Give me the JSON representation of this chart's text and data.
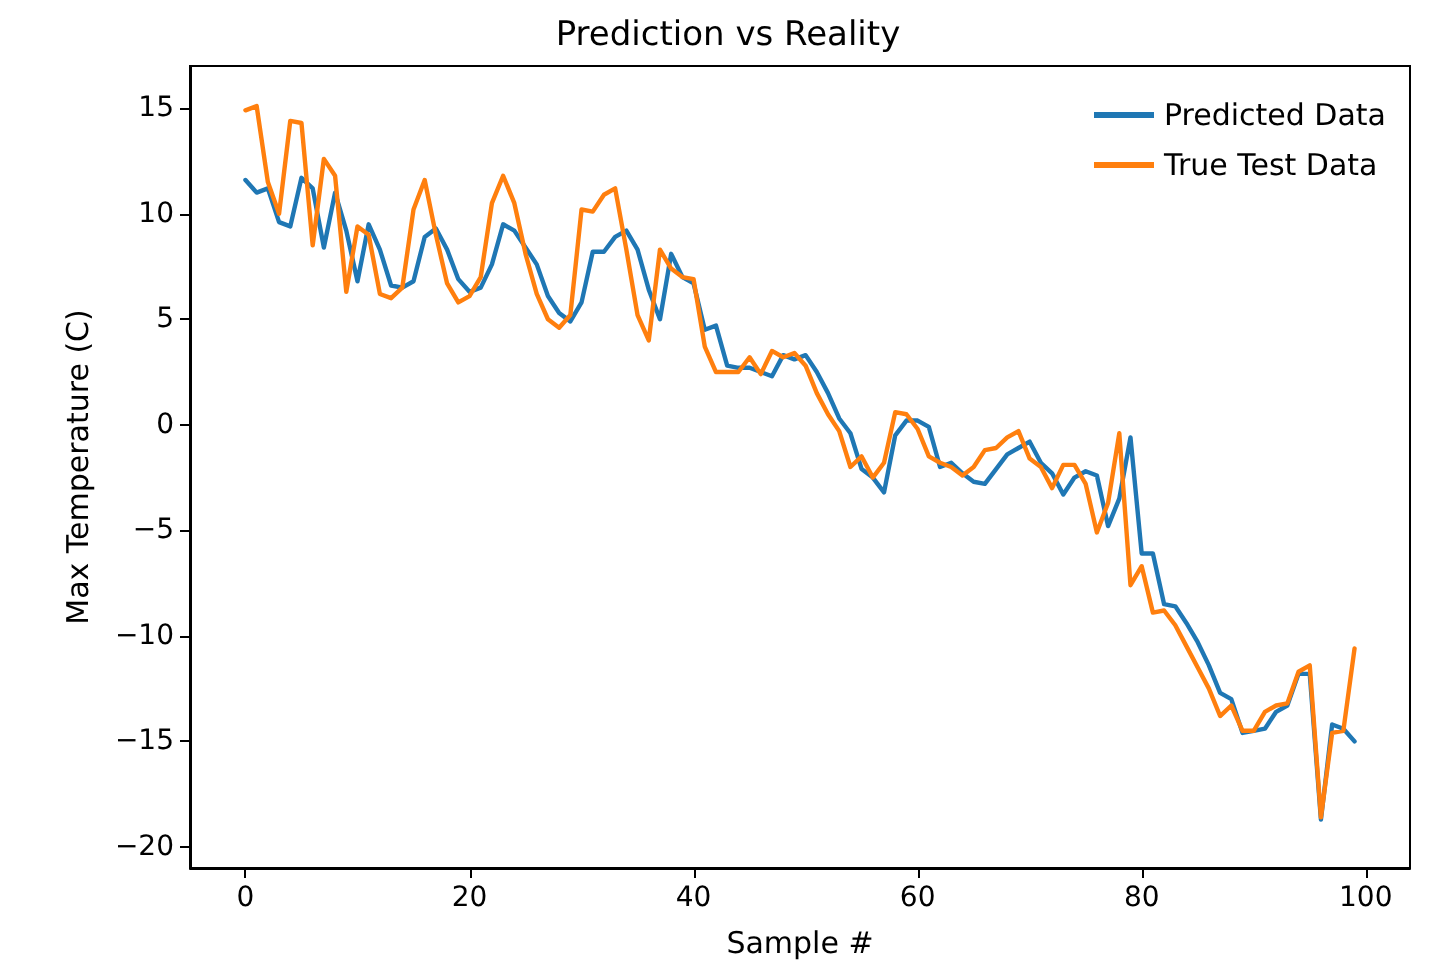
{
  "chart_data": {
    "type": "line",
    "title": "Prediction vs Reality",
    "xlabel": "Sample #",
    "ylabel": "Max Temperature (C)",
    "x": [
      0,
      1,
      2,
      3,
      4,
      5,
      6,
      7,
      8,
      9,
      10,
      11,
      12,
      13,
      14,
      15,
      16,
      17,
      18,
      19,
      20,
      21,
      22,
      23,
      24,
      25,
      26,
      27,
      28,
      29,
      30,
      31,
      32,
      33,
      34,
      35,
      36,
      37,
      38,
      39,
      40,
      41,
      42,
      43,
      44,
      45,
      46,
      47,
      48,
      49,
      50,
      51,
      52,
      53,
      54,
      55,
      56,
      57,
      58,
      59,
      60,
      61,
      62,
      63,
      64,
      65,
      66,
      67,
      68,
      69,
      70,
      71,
      72,
      73,
      74,
      75,
      76,
      77,
      78,
      79,
      80,
      81,
      82,
      83,
      84,
      85,
      86,
      87,
      88,
      89,
      90,
      91,
      92,
      93,
      94,
      95,
      96,
      97,
      98,
      99
    ],
    "series": [
      {
        "name": "Predicted Data",
        "color": "#1f77b4",
        "values": [
          11.6,
          11,
          11.2,
          9.6,
          9.4,
          11.7,
          11.2,
          8.4,
          11,
          9.2,
          6.8,
          9.5,
          8.3,
          6.6,
          6.5,
          6.8,
          8.9,
          9.3,
          8.3,
          6.9,
          6.3,
          6.5,
          7.6,
          9.5,
          9.2,
          8.4,
          7.6,
          6.1,
          5.3,
          4.9,
          5.8,
          8.2,
          8.2,
          8.9,
          9.2,
          8.3,
          6.4,
          5,
          8.1,
          7,
          6.7,
          4.5,
          4.7,
          2.8,
          2.7,
          2.7,
          2.5,
          2.3,
          3.3,
          3.1,
          3.3,
          2.5,
          1.5,
          0.3,
          -0.4,
          -2.1,
          -2.5,
          -3.2,
          -0.5,
          0.2,
          0.2,
          -0.1,
          -2,
          -1.8,
          -2.3,
          -2.7,
          -2.8,
          -2.1,
          -1.4,
          -1.1,
          -0.8,
          -1.8,
          -2.3,
          -3.3,
          -2.5,
          -2.2,
          -2.4,
          -4.8,
          -3.5,
          -0.6,
          -6.1,
          -6.1,
          -8.5,
          -8.6,
          -9.4,
          -10.3,
          -11.4,
          -12.7,
          -13,
          -14.6,
          -14.5,
          -14.4,
          -13.6,
          -13.3,
          -11.8,
          -11.8,
          -18.7,
          -14.2,
          -14.4,
          -15
        ]
      },
      {
        "name": "True Test Data",
        "color": "#ff7f0e",
        "values": [
          14.9,
          15.1,
          11.5,
          10,
          14.4,
          14.3,
          8.5,
          12.6,
          11.8,
          6.3,
          9.4,
          9,
          6.2,
          6,
          6.5,
          10.2,
          11.6,
          9,
          6.7,
          5.8,
          6.1,
          7,
          10.5,
          11.8,
          10.5,
          8.1,
          6.2,
          5,
          4.6,
          5.2,
          10.2,
          10.1,
          10.9,
          11.2,
          8.3,
          5.2,
          4,
          8.3,
          7.4,
          7,
          6.9,
          3.7,
          2.5,
          2.5,
          2.5,
          3.2,
          2.4,
          3.5,
          3.2,
          3.4,
          2.8,
          1.5,
          0.5,
          -0.3,
          -2,
          -1.5,
          -2.5,
          -1.8,
          0.6,
          0.5,
          -0.2,
          -1.5,
          -1.8,
          -2,
          -2.4,
          -2,
          -1.2,
          -1.1,
          -0.6,
          -0.3,
          -1.6,
          -2,
          -3,
          -1.9,
          -1.9,
          -2.8,
          -5.1,
          -3.7,
          -0.4,
          -7.6,
          -6.7,
          -8.9,
          -8.8,
          -9.5,
          -10.5,
          -11.5,
          -12.5,
          -13.8,
          -13.3,
          -14.5,
          -14.5,
          -13.6,
          -13.3,
          -13.2,
          -11.7,
          -11.4,
          -18.6,
          -14.6,
          -14.5,
          -10.6
        ]
      }
    ],
    "xlim": [
      -4.95,
      103.95
    ],
    "xticks": [
      0,
      20,
      40,
      60,
      80,
      100
    ],
    "ylim": [
      -21,
      17
    ],
    "yticks": [
      -20,
      -15,
      -10,
      -5,
      0,
      5,
      10,
      15
    ],
    "legend": "top right",
    "grid": false,
    "marker": "none",
    "line_style": "solid"
  }
}
